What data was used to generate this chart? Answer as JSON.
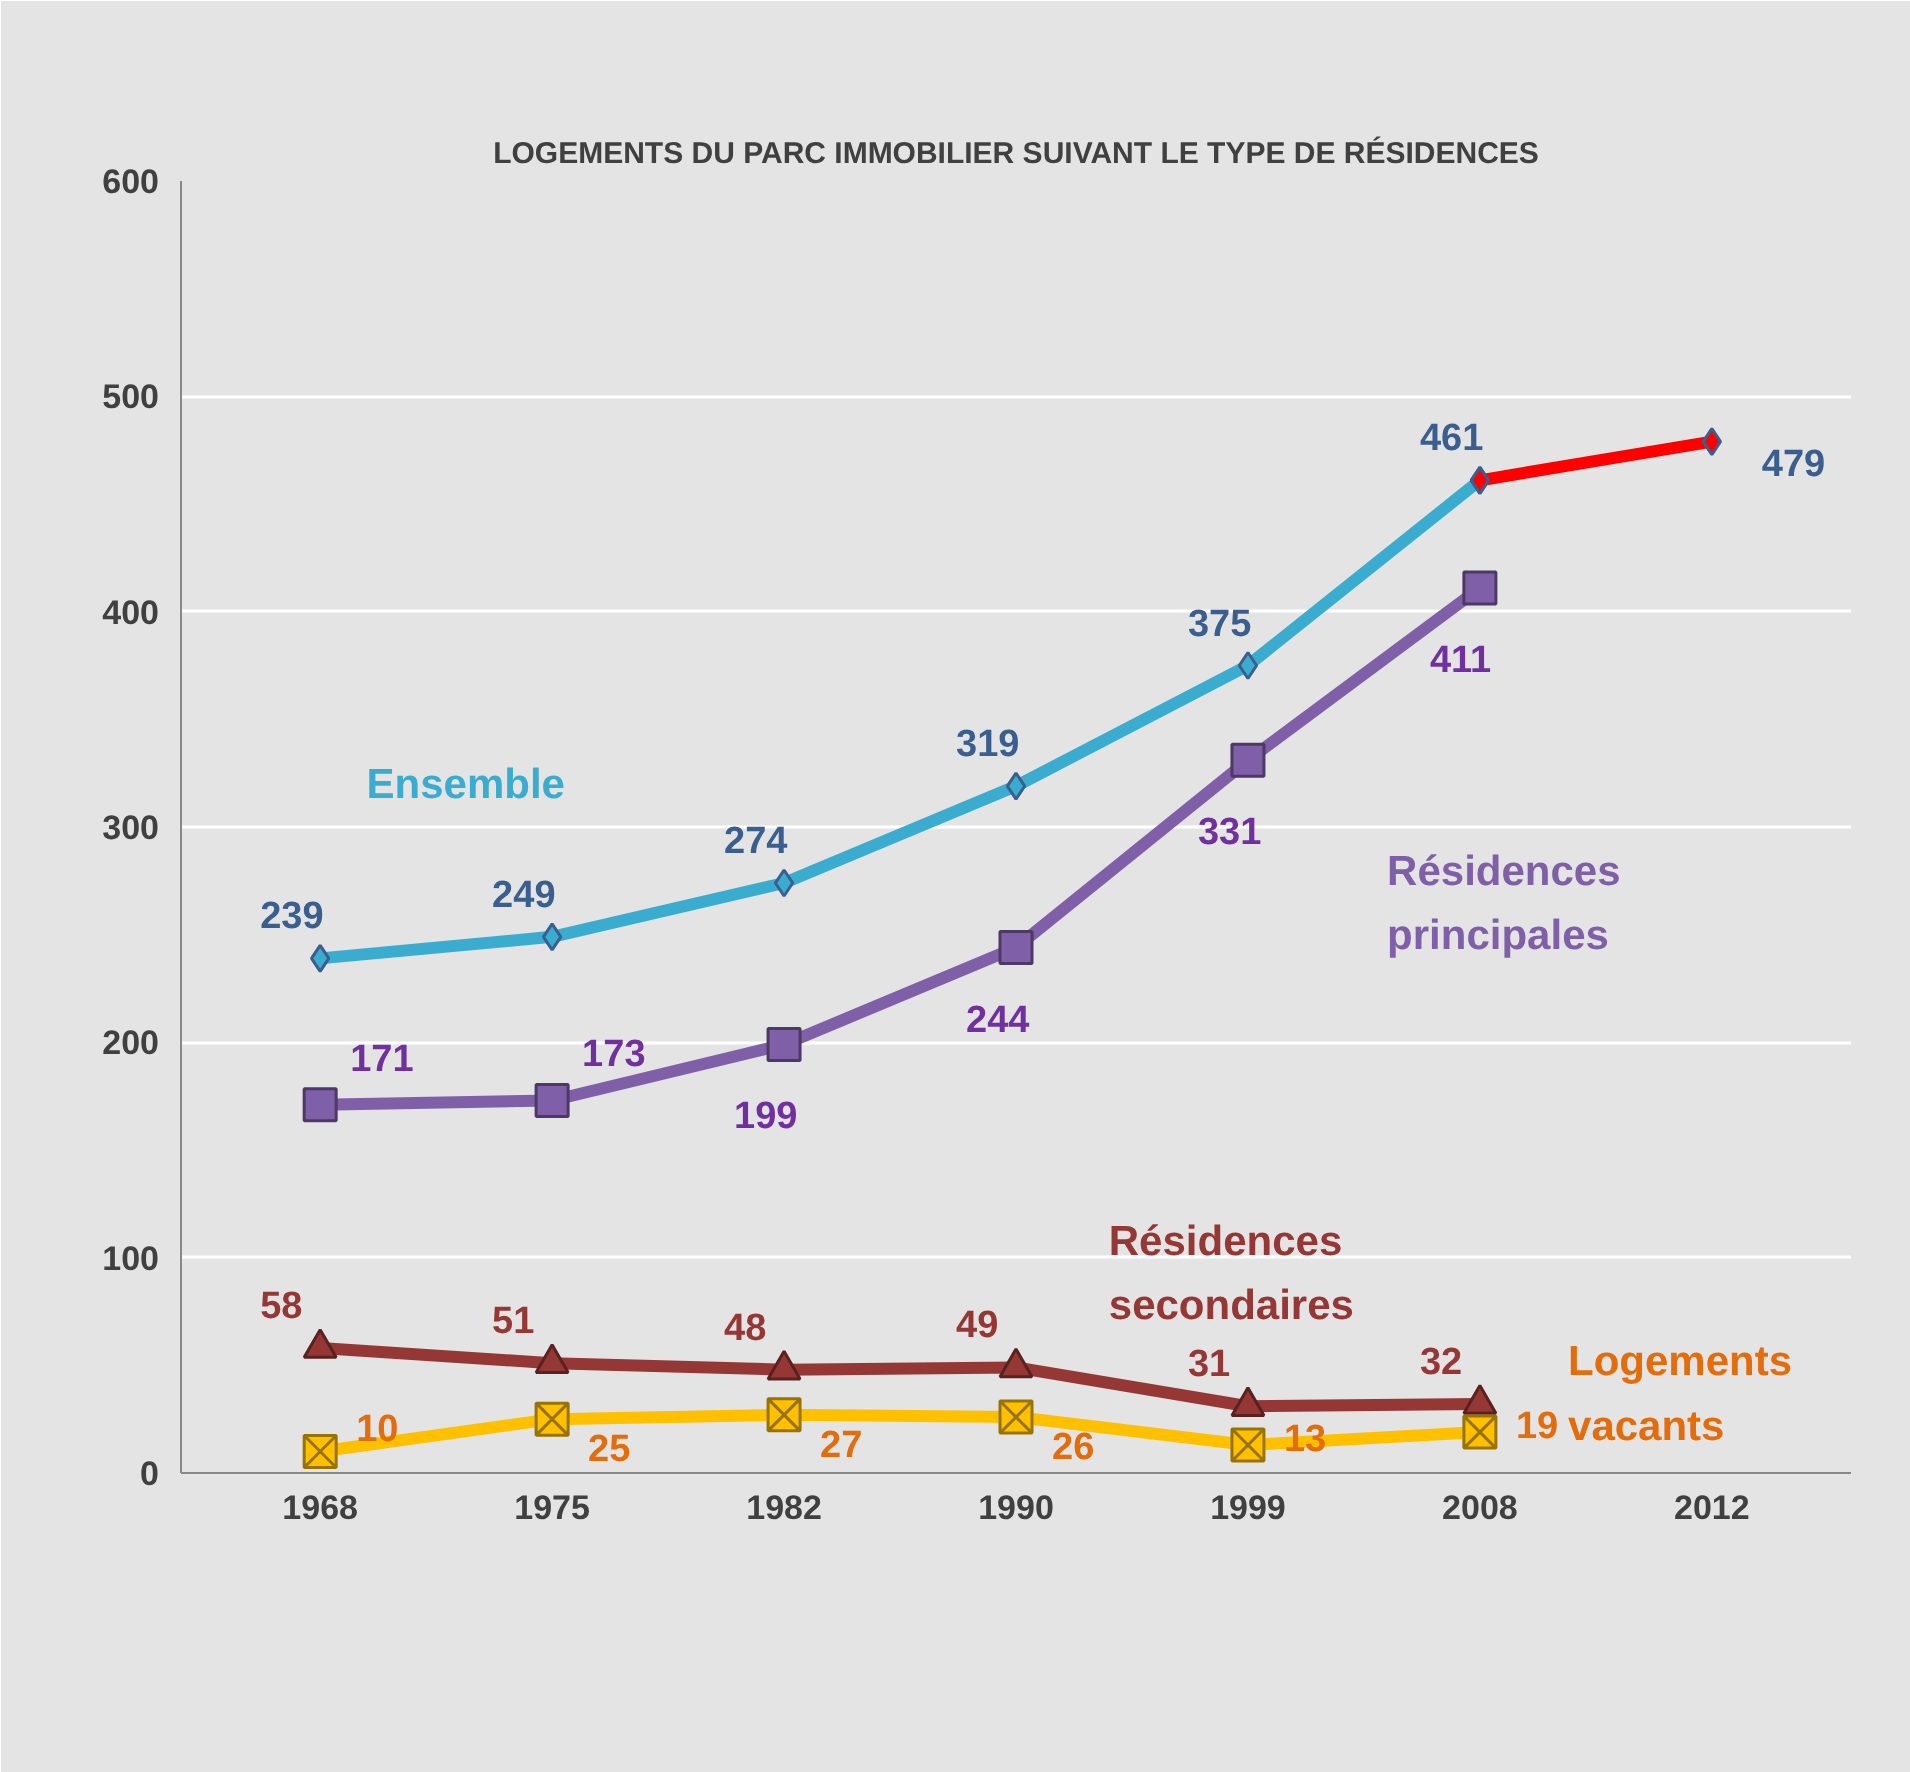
{
  "chart_data": {
    "type": "line",
    "title": "LOGEMENTS DU PARC IMMOBILIER SUIVANT LE TYPE DE RÉSIDENCES",
    "categories": [
      "1968",
      "1975",
      "1982",
      "1990",
      "1999",
      "2008",
      "2012"
    ],
    "ylim": [
      0,
      600
    ],
    "yticks": [
      0,
      100,
      200,
      300,
      400,
      500,
      600
    ],
    "grid": "y",
    "series": [
      {
        "name": "Ensemble",
        "color": "#3aacd0",
        "marker": "diamond",
        "values": [
          239,
          249,
          274,
          319,
          375,
          461,
          null
        ],
        "value_labels": [
          "239",
          "249",
          "274",
          "319",
          "375",
          "461",
          null
        ]
      },
      {
        "color": "#ff0000",
        "marker": "diamond",
        "values": [
          null,
          null,
          null,
          null,
          null,
          461,
          479
        ],
        "value_labels": [
          null,
          null,
          null,
          null,
          null,
          null,
          "479"
        ]
      },
      {
        "name": "Résidences principales",
        "color": "#7f60a8",
        "marker": "square",
        "values": [
          171,
          173,
          199,
          244,
          331,
          411,
          null
        ],
        "value_labels": [
          "171",
          "173",
          "199",
          "244",
          "331",
          "411",
          null
        ]
      },
      {
        "name": "Résidences secondaires",
        "color": "#953735",
        "marker": "triangle",
        "values": [
          58,
          51,
          48,
          49,
          31,
          32,
          null
        ],
        "value_labels": [
          "58",
          "51",
          "48",
          "49",
          "31",
          "32",
          null
        ]
      },
      {
        "name": "Logements vacants",
        "color": "#ffc000",
        "marker": "cross",
        "values": [
          10,
          25,
          27,
          26,
          13,
          19,
          null
        ],
        "value_labels": [
          "10",
          "25",
          "27",
          "26",
          "13",
          "19",
          null
        ]
      }
    ]
  }
}
